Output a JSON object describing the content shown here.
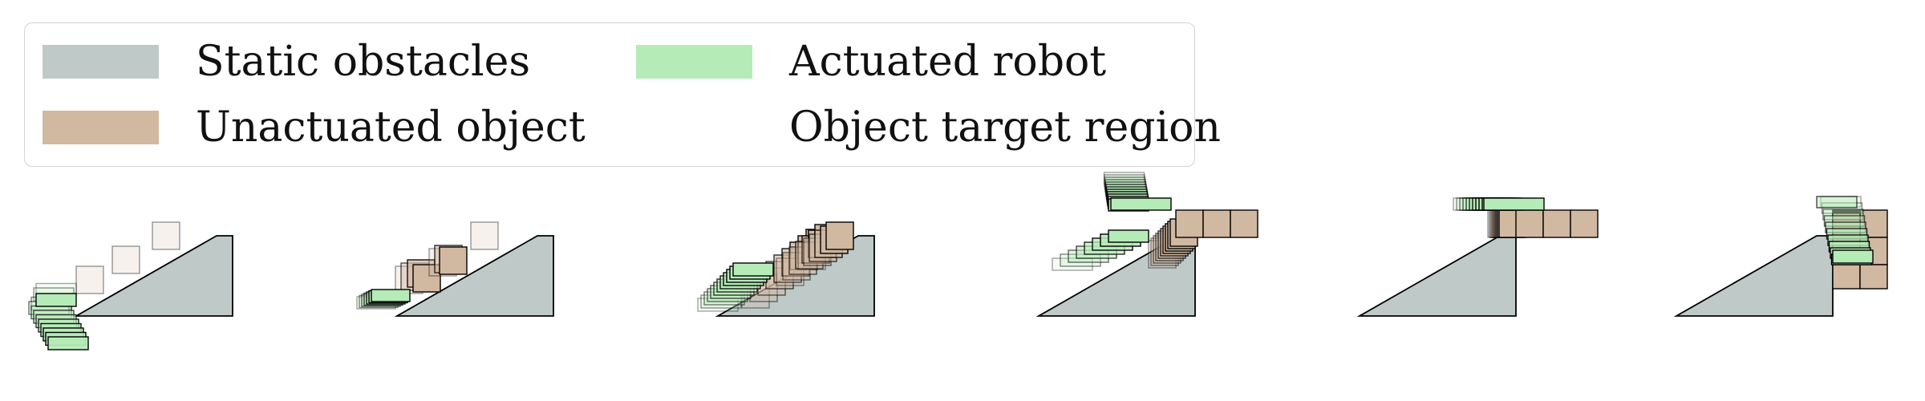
{
  "legend": {
    "items": [
      {
        "label": "Static obstacles",
        "color": "#bfc9c8"
      },
      {
        "label": "Actuated robot",
        "color": "#b5ebb7"
      },
      {
        "label": "Unactuated object",
        "color": "#d1b8a1"
      },
      {
        "label": "Object target region",
        "color": null
      }
    ]
  },
  "colors": {
    "obstacle": "#bfc9c8",
    "robot": "#b5ebb7",
    "object": "#d1b8a1",
    "outline": "#000000"
  },
  "frames": 6
}
